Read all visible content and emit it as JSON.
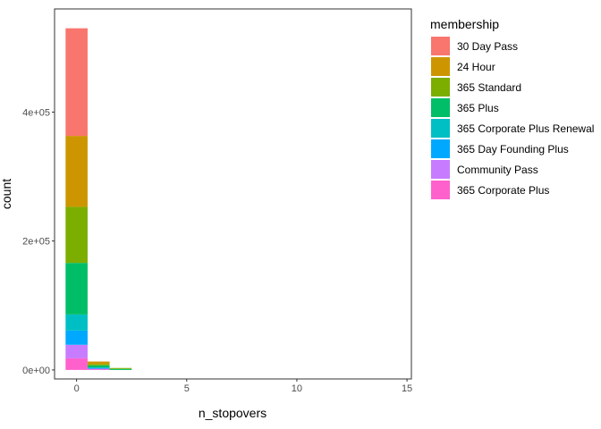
{
  "chart_data": {
    "type": "bar",
    "stacked": true,
    "xlabel": "n_stopovers",
    "ylabel": "count",
    "xlim": [
      -1,
      15.2
    ],
    "ylim": [
      -14000,
      560000
    ],
    "x_ticks": [
      0,
      5,
      10,
      15
    ],
    "x_tick_labels": [
      "0",
      "5",
      "10",
      "15"
    ],
    "y_ticks": [
      0,
      200000,
      400000
    ],
    "y_tick_labels": [
      "0e+00",
      "2e+05",
      "4e+05"
    ],
    "bar_width": 1,
    "grid": false,
    "legend_position": "right",
    "legend_title": "membership",
    "categories": [
      0,
      1,
      2
    ],
    "series": [
      {
        "name": "30 Day Pass",
        "color": "#F8766D",
        "values": [
          167000,
          0,
          0
        ]
      },
      {
        "name": "24 Hour",
        "color": "#CD9600",
        "values": [
          110000,
          4000,
          0
        ]
      },
      {
        "name": "365 Standard",
        "color": "#7CAE00",
        "values": [
          87000,
          2000,
          1500
        ]
      },
      {
        "name": "365 Plus",
        "color": "#00BE67",
        "values": [
          80000,
          3000,
          1500
        ]
      },
      {
        "name": "365 Corporate Plus Renewal",
        "color": "#00BFC4",
        "values": [
          25000,
          1000,
          0
        ]
      },
      {
        "name": "365 Day Founding Plus",
        "color": "#00A9FF",
        "values": [
          22000,
          1000,
          0
        ]
      },
      {
        "name": "Community Pass",
        "color": "#C77CFF",
        "values": [
          21000,
          1000,
          0
        ]
      },
      {
        "name": "365 Corporate Plus",
        "color": "#FF61CC",
        "values": [
          18000,
          1000,
          0
        ]
      }
    ]
  }
}
